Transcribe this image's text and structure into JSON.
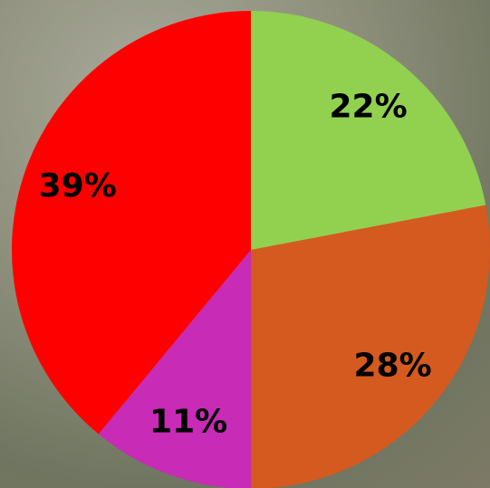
{
  "chart_data": {
    "type": "pie",
    "values": [
      22,
      28,
      11,
      39
    ],
    "value_labels": [
      "22%",
      "28%",
      "11%",
      "39%"
    ],
    "colors": [
      "#92d050",
      "#d55a1f",
      "#c82bb5",
      "#ff0000"
    ]
  }
}
